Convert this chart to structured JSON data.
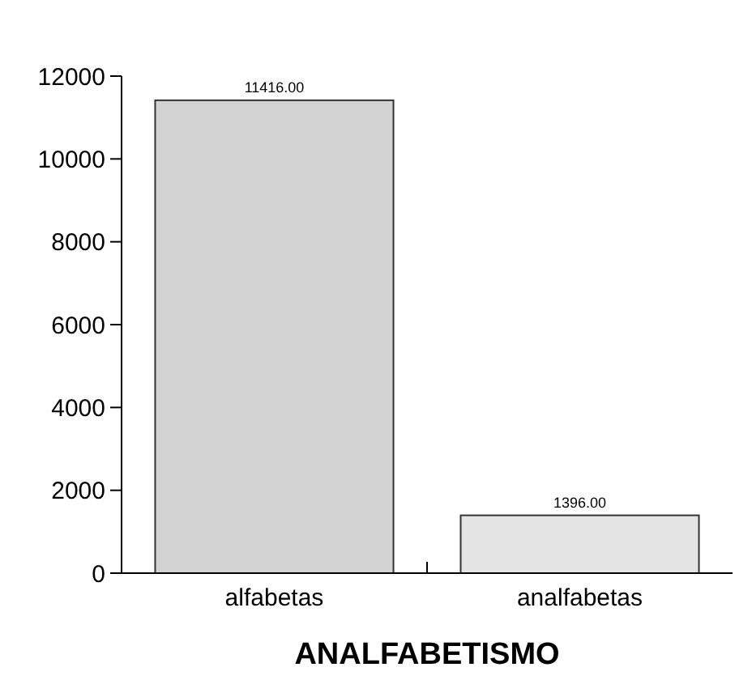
{
  "chart_data": {
    "type": "bar",
    "title": "ANALFABETISMO",
    "categories": [
      "alfabetas",
      "analfabetas"
    ],
    "values": [
      11416,
      1396
    ],
    "colors": [
      "#d3d3d3",
      "#e4e4e4"
    ],
    "value_labels": [
      "11416.00",
      "1396.00"
    ],
    "ylim": [
      0,
      12000
    ],
    "yticks": [
      0,
      2000,
      4000,
      6000,
      8000,
      10000,
      12000
    ],
    "grid": false
  }
}
